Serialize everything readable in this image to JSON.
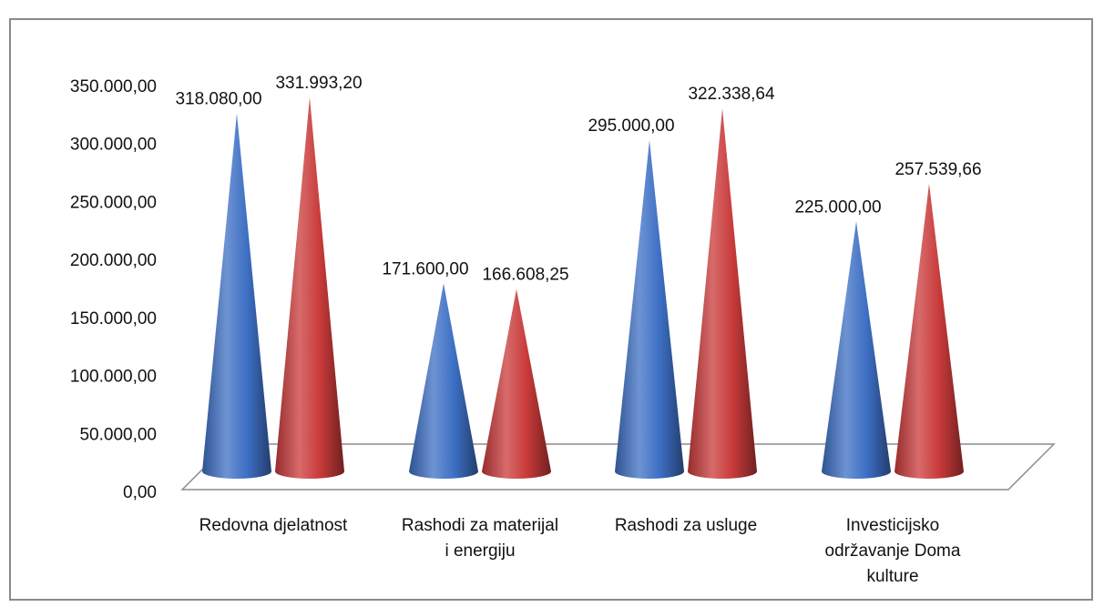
{
  "chart_data": {
    "type": "bar",
    "style": "3d-cone",
    "categories": [
      [
        "Redovna djelatnost"
      ],
      [
        "Rashodi za materijal",
        "i energiju"
      ],
      [
        "Rashodi za usluge"
      ],
      [
        "Investicijsko",
        "održavanje Doma",
        "kulture"
      ]
    ],
    "series": [
      {
        "color": "#3d6fc4",
        "values": [
          318080.0,
          171600.0,
          295000.0,
          225000.0
        ],
        "labels": [
          "318.080,00",
          "171.600,00",
          "295.000,00",
          "225.000,00"
        ]
      },
      {
        "color": "#c93a3a",
        "values": [
          331993.2,
          166608.25,
          322338.64,
          257539.66
        ],
        "labels": [
          "331.993,20",
          "166.608,25",
          "322.338,64",
          "257.539,66"
        ]
      }
    ],
    "ylim": [
      0,
      350000
    ],
    "yticks": [
      "0,00",
      "50.000,00",
      "100.000,00",
      "150.000,00",
      "200.000,00",
      "250.000,00",
      "300.000,00",
      "350.000,00"
    ],
    "grid": false,
    "legend": "none"
  }
}
